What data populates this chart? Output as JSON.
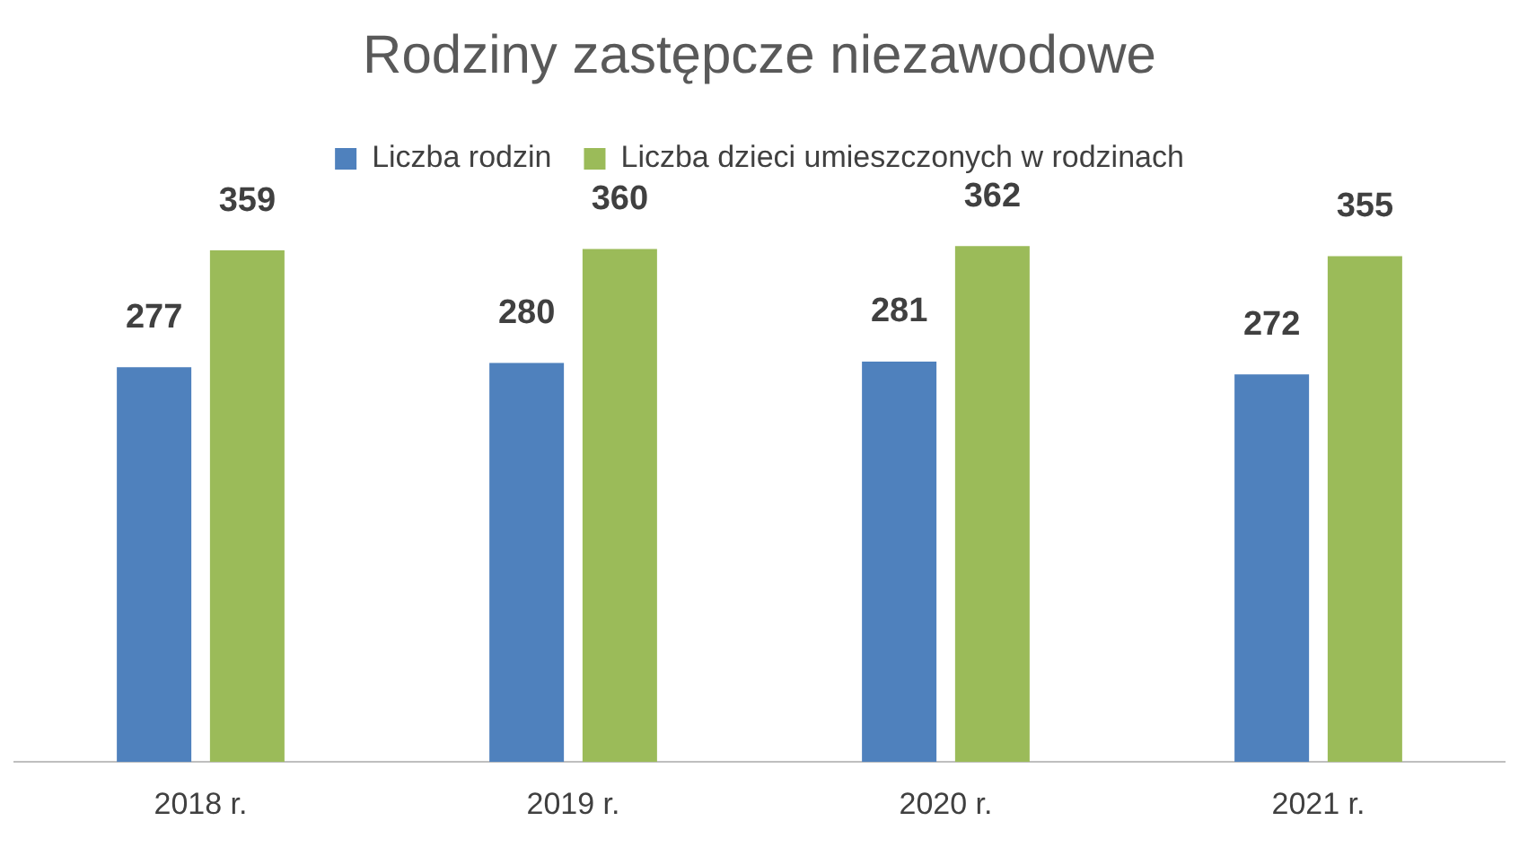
{
  "chart_data": {
    "type": "bar",
    "title": "Rodziny zastępcze niezawodowe",
    "categories": [
      "2018 r.",
      "2019 r.",
      "2020 r.",
      "2021 r."
    ],
    "series": [
      {
        "name": "Liczba rodzin",
        "color": "#4f81bd",
        "values": [
          277,
          280,
          281,
          272
        ]
      },
      {
        "name": "Liczba dzieci umieszczonych w rodzinach",
        "color": "#9bbb59",
        "values": [
          359,
          360,
          362,
          355
        ]
      }
    ],
    "data_labels": true,
    "legend": "top",
    "grid": false
  }
}
